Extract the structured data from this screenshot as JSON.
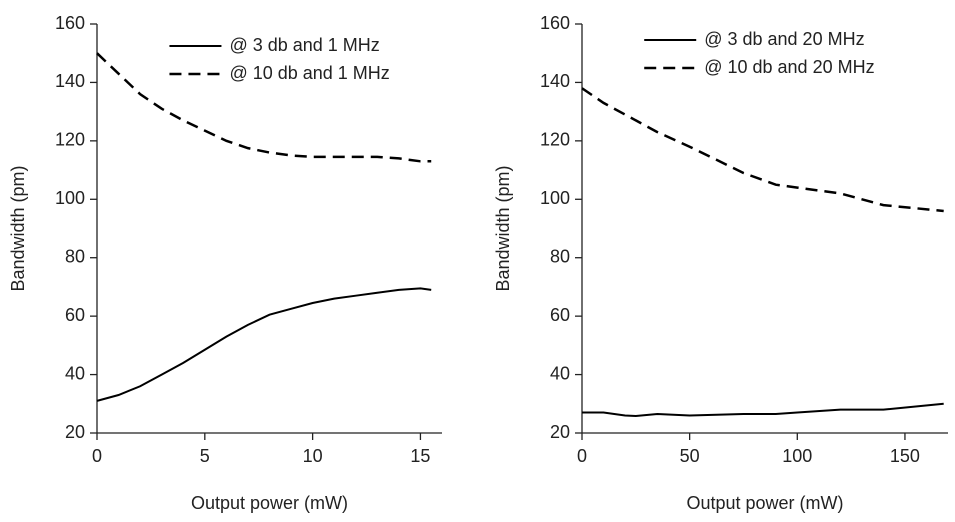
{
  "chart_data": [
    {
      "type": "line",
      "xlabel": "Output power (mW)",
      "ylabel": "Bandwidth (pm)",
      "x": [
        0,
        1,
        2,
        3,
        4,
        5,
        6,
        7,
        8,
        9,
        10,
        11,
        12,
        13,
        14,
        15,
        15.5
      ],
      "series": [
        {
          "name": "@ 3 db and 1 MHz",
          "color": "#000000",
          "linestyle": "solid",
          "values": [
            31,
            33,
            36,
            40,
            44,
            48.5,
            53,
            57,
            60.5,
            62.5,
            64.5,
            66,
            67,
            68,
            69,
            69.5,
            69
          ]
        },
        {
          "name": "@ 10 db and 1 MHz",
          "color": "#000000",
          "linestyle": "dashed",
          "values": [
            150,
            143,
            136,
            131,
            127,
            123.5,
            120,
            117.5,
            116,
            115,
            114.5,
            114.5,
            114.5,
            114.5,
            114,
            113,
            113
          ]
        }
      ],
      "xlim": [
        0,
        16
      ],
      "xticks": [
        0,
        5,
        10,
        15
      ],
      "ylim": [
        20,
        160
      ],
      "yticks": [
        20,
        40,
        60,
        80,
        100,
        120,
        140,
        160
      ],
      "legend": "upper center"
    },
    {
      "type": "line",
      "xlabel": "Output power (mW)",
      "ylabel": "Bandwidth (pm)",
      "x": [
        0,
        10,
        20,
        25,
        35,
        50,
        75,
        90,
        100,
        120,
        140,
        168
      ],
      "series": [
        {
          "name": "@ 3 db and 20 MHz",
          "color": "#000000",
          "linestyle": "solid",
          "values": [
            27,
            27,
            26,
            25.8,
            26.5,
            26,
            26.5,
            26.5,
            27,
            28,
            28,
            30
          ]
        },
        {
          "name": "@ 10 db and 20 MHz",
          "color": "#000000",
          "linestyle": "dashed",
          "values": [
            138,
            133,
            129,
            127,
            123,
            118,
            109,
            105,
            104,
            102,
            98,
            96
          ]
        }
      ],
      "xlim": [
        0,
        170
      ],
      "xticks": [
        0,
        50,
        100,
        150
      ],
      "ylim": [
        20,
        160
      ],
      "yticks": [
        20,
        40,
        60,
        80,
        100,
        120,
        140,
        160
      ],
      "legend": "upper right"
    }
  ]
}
